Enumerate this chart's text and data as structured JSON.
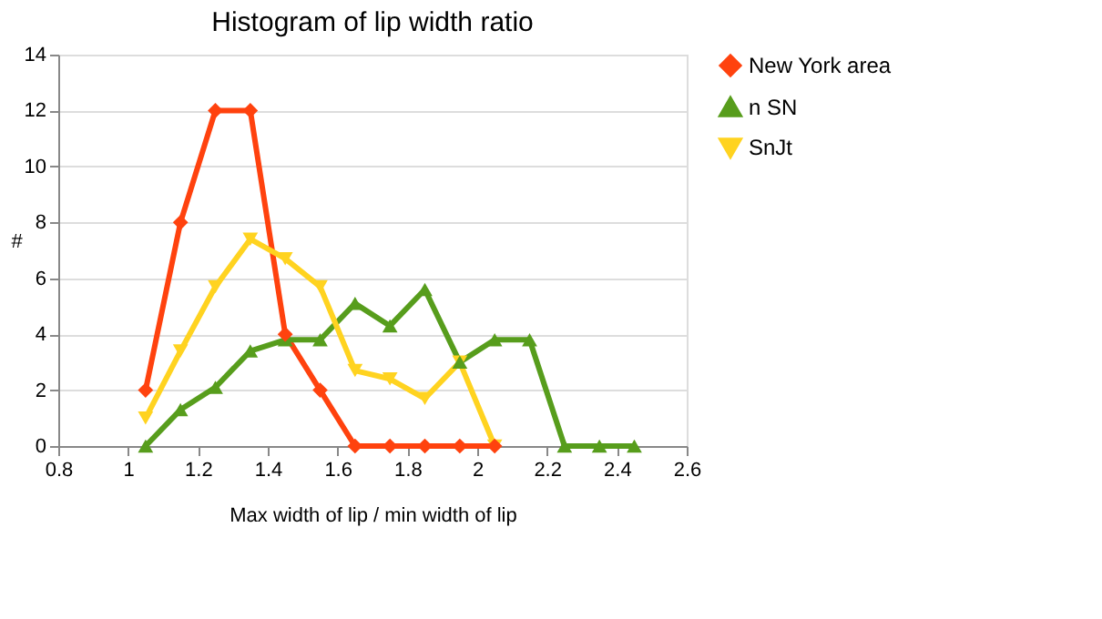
{
  "chart_data": {
    "type": "line",
    "title": "Histogram of lip width ratio",
    "xlabel": "Max width of lip / min width of lip",
    "ylabel": "#",
    "xlim": [
      0.8,
      2.6
    ],
    "xticks": [
      0.8,
      1,
      1.2,
      1.4,
      1.6,
      1.8,
      2,
      2.2,
      2.4,
      2.6
    ],
    "ylim": [
      0,
      14
    ],
    "yticks": [
      0,
      2,
      4,
      6,
      8,
      10,
      12,
      14
    ],
    "grid": "y",
    "legend": "right",
    "series": [
      {
        "name": "New York area",
        "color": "#ff420e",
        "marker": "diamond",
        "x": [
          1.05,
          1.15,
          1.25,
          1.35,
          1.45,
          1.55,
          1.65,
          1.75,
          1.85,
          1.95,
          2.05
        ],
        "values": [
          2,
          8,
          12,
          12,
          4,
          2,
          0,
          0,
          0,
          0,
          0
        ]
      },
      {
        "name": "n SN",
        "color": "#579d1c",
        "marker": "triangle-up",
        "x": [
          1.05,
          1.15,
          1.25,
          1.35,
          1.45,
          1.55,
          1.65,
          1.75,
          1.85,
          1.95,
          2.05,
          2.15,
          2.25,
          2.35,
          2.45
        ],
        "values": [
          0,
          1.3,
          2.1,
          3.4,
          3.8,
          3.8,
          5.1,
          4.3,
          5.6,
          3.0,
          3.8,
          3.8,
          0,
          0,
          0
        ]
      },
      {
        "name": "SnJt",
        "color": "#ffd320",
        "marker": "triangle-down",
        "x": [
          1.05,
          1.15,
          1.25,
          1.35,
          1.45,
          1.55,
          1.65,
          1.75,
          1.85,
          1.95,
          2.05
        ],
        "values": [
          1.0,
          3.4,
          5.7,
          7.4,
          6.7,
          5.7,
          2.7,
          2.4,
          1.7,
          3.0,
          0
        ]
      }
    ]
  }
}
